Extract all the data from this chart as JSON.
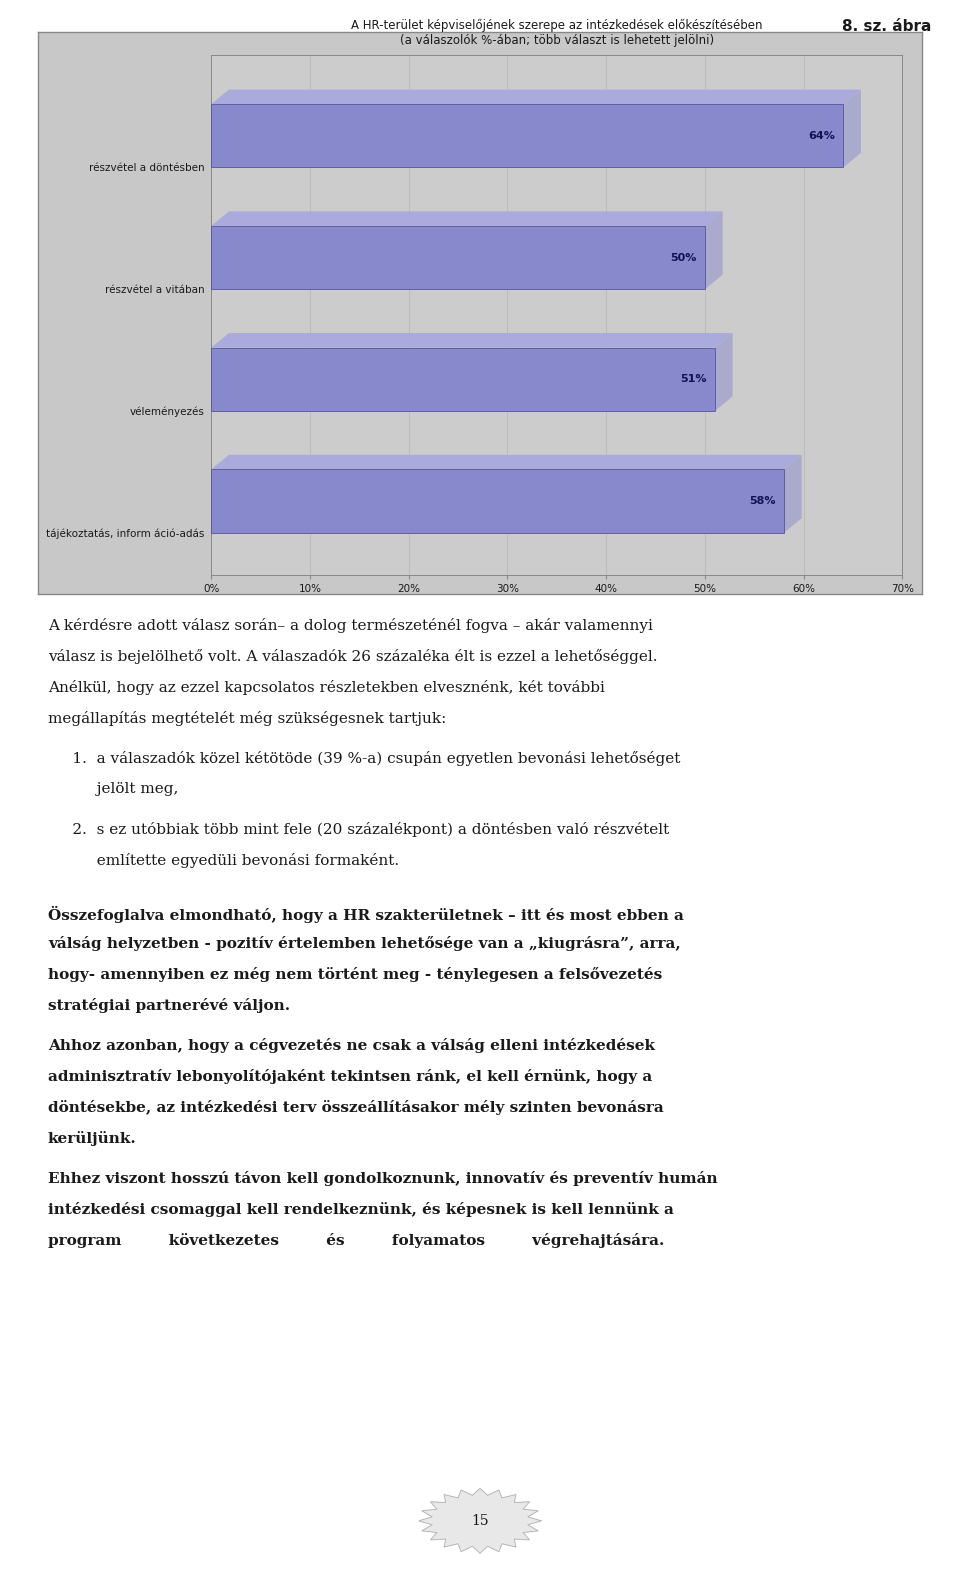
{
  "title_line1": "A HR-terület képviselőjének szerepe az intézkedések előkészítésében",
  "title_line2": "(a válaszolók %-ában; több választ is lehetett jelölni)",
  "categories": [
    "részvétel a döntésben",
    "részvétel a vitában",
    "véleményezés",
    "tájékoztatás, inform áció-adás"
  ],
  "values": [
    64,
    50,
    51,
    58
  ],
  "bar_color": "#8888cc",
  "bar_edge_color": "#555599",
  "bar_top_color": "#aaaadd",
  "bar_right_color": "#aaaacc",
  "chart_bg": "#c8c8c8",
  "plot_bg": "#cccccc",
  "grid_color": "#bbbbbb",
  "outer_bg": "#ffffff",
  "xlim_max": 70,
  "xtick_labels": [
    "0%",
    "10%",
    "20%",
    "30%",
    "40%",
    "50%",
    "60%",
    "70%"
  ],
  "xtick_values": [
    0,
    10,
    20,
    30,
    40,
    50,
    60,
    70
  ],
  "label_fontsize": 7.5,
  "title_fontsize": 8.5,
  "value_fontsize": 8,
  "xtick_fontsize": 7.5,
  "page_number": "15",
  "figure_label": "8. sz. ábra",
  "p1": "A kérdésre adott válasz során– a dolog természeténél fogva – akár valamennyi válasz is bejelölhető volt. A válaszadók 26 százaléka élt is ezzel a lehetőséggel. Anélkül, hogy az ezzel kapcsolatos részletekben elvesznénk, két további megállapítás megtételét még szükségesnek tartjuk:",
  "p2a": "1.   a válaszadók közel kétötöde (39 %-a) csupán egyetlen bevonási lehetőséget",
  "p2b": "      jelölt meg,",
  "p3a": "2.   s ez utóbbiak több mint fele (20 százalékpont) a döntésben való részvételt",
  "p3b": "      említette egyedüli bevonási formaként.",
  "p4": "Összefoglalva elmondható, hogy a HR szakterületnek – itt és most ebben a válság helyzetben - pozitív értelemben lehetősége van a „kiugrásra”, arra, hogy- amennyiben ez még nem történt meg - ténylegesen a felsővezetés stratégiai partnerévé váljon.",
  "p5": "Ahhoz azonban, hogy a cégvezetés ne csak a válság elleni intézkedések adminisztratív lebonyolítójaként tekintsen ránk, el kell érnünk, hogy a döntésekbe, az intézkedési terv összeállításakor mély szinten bevonásra kerüljünk.",
  "p6a": "Ehhez viszont hosszú távon kell gondolkoznunk, innovatív és preventív humán intézkedési csomaggal kell rendelkeznünk, és képesnek is kell lennünk a",
  "p6b": "program         következetes         és         folyamatos         végrehajtására."
}
